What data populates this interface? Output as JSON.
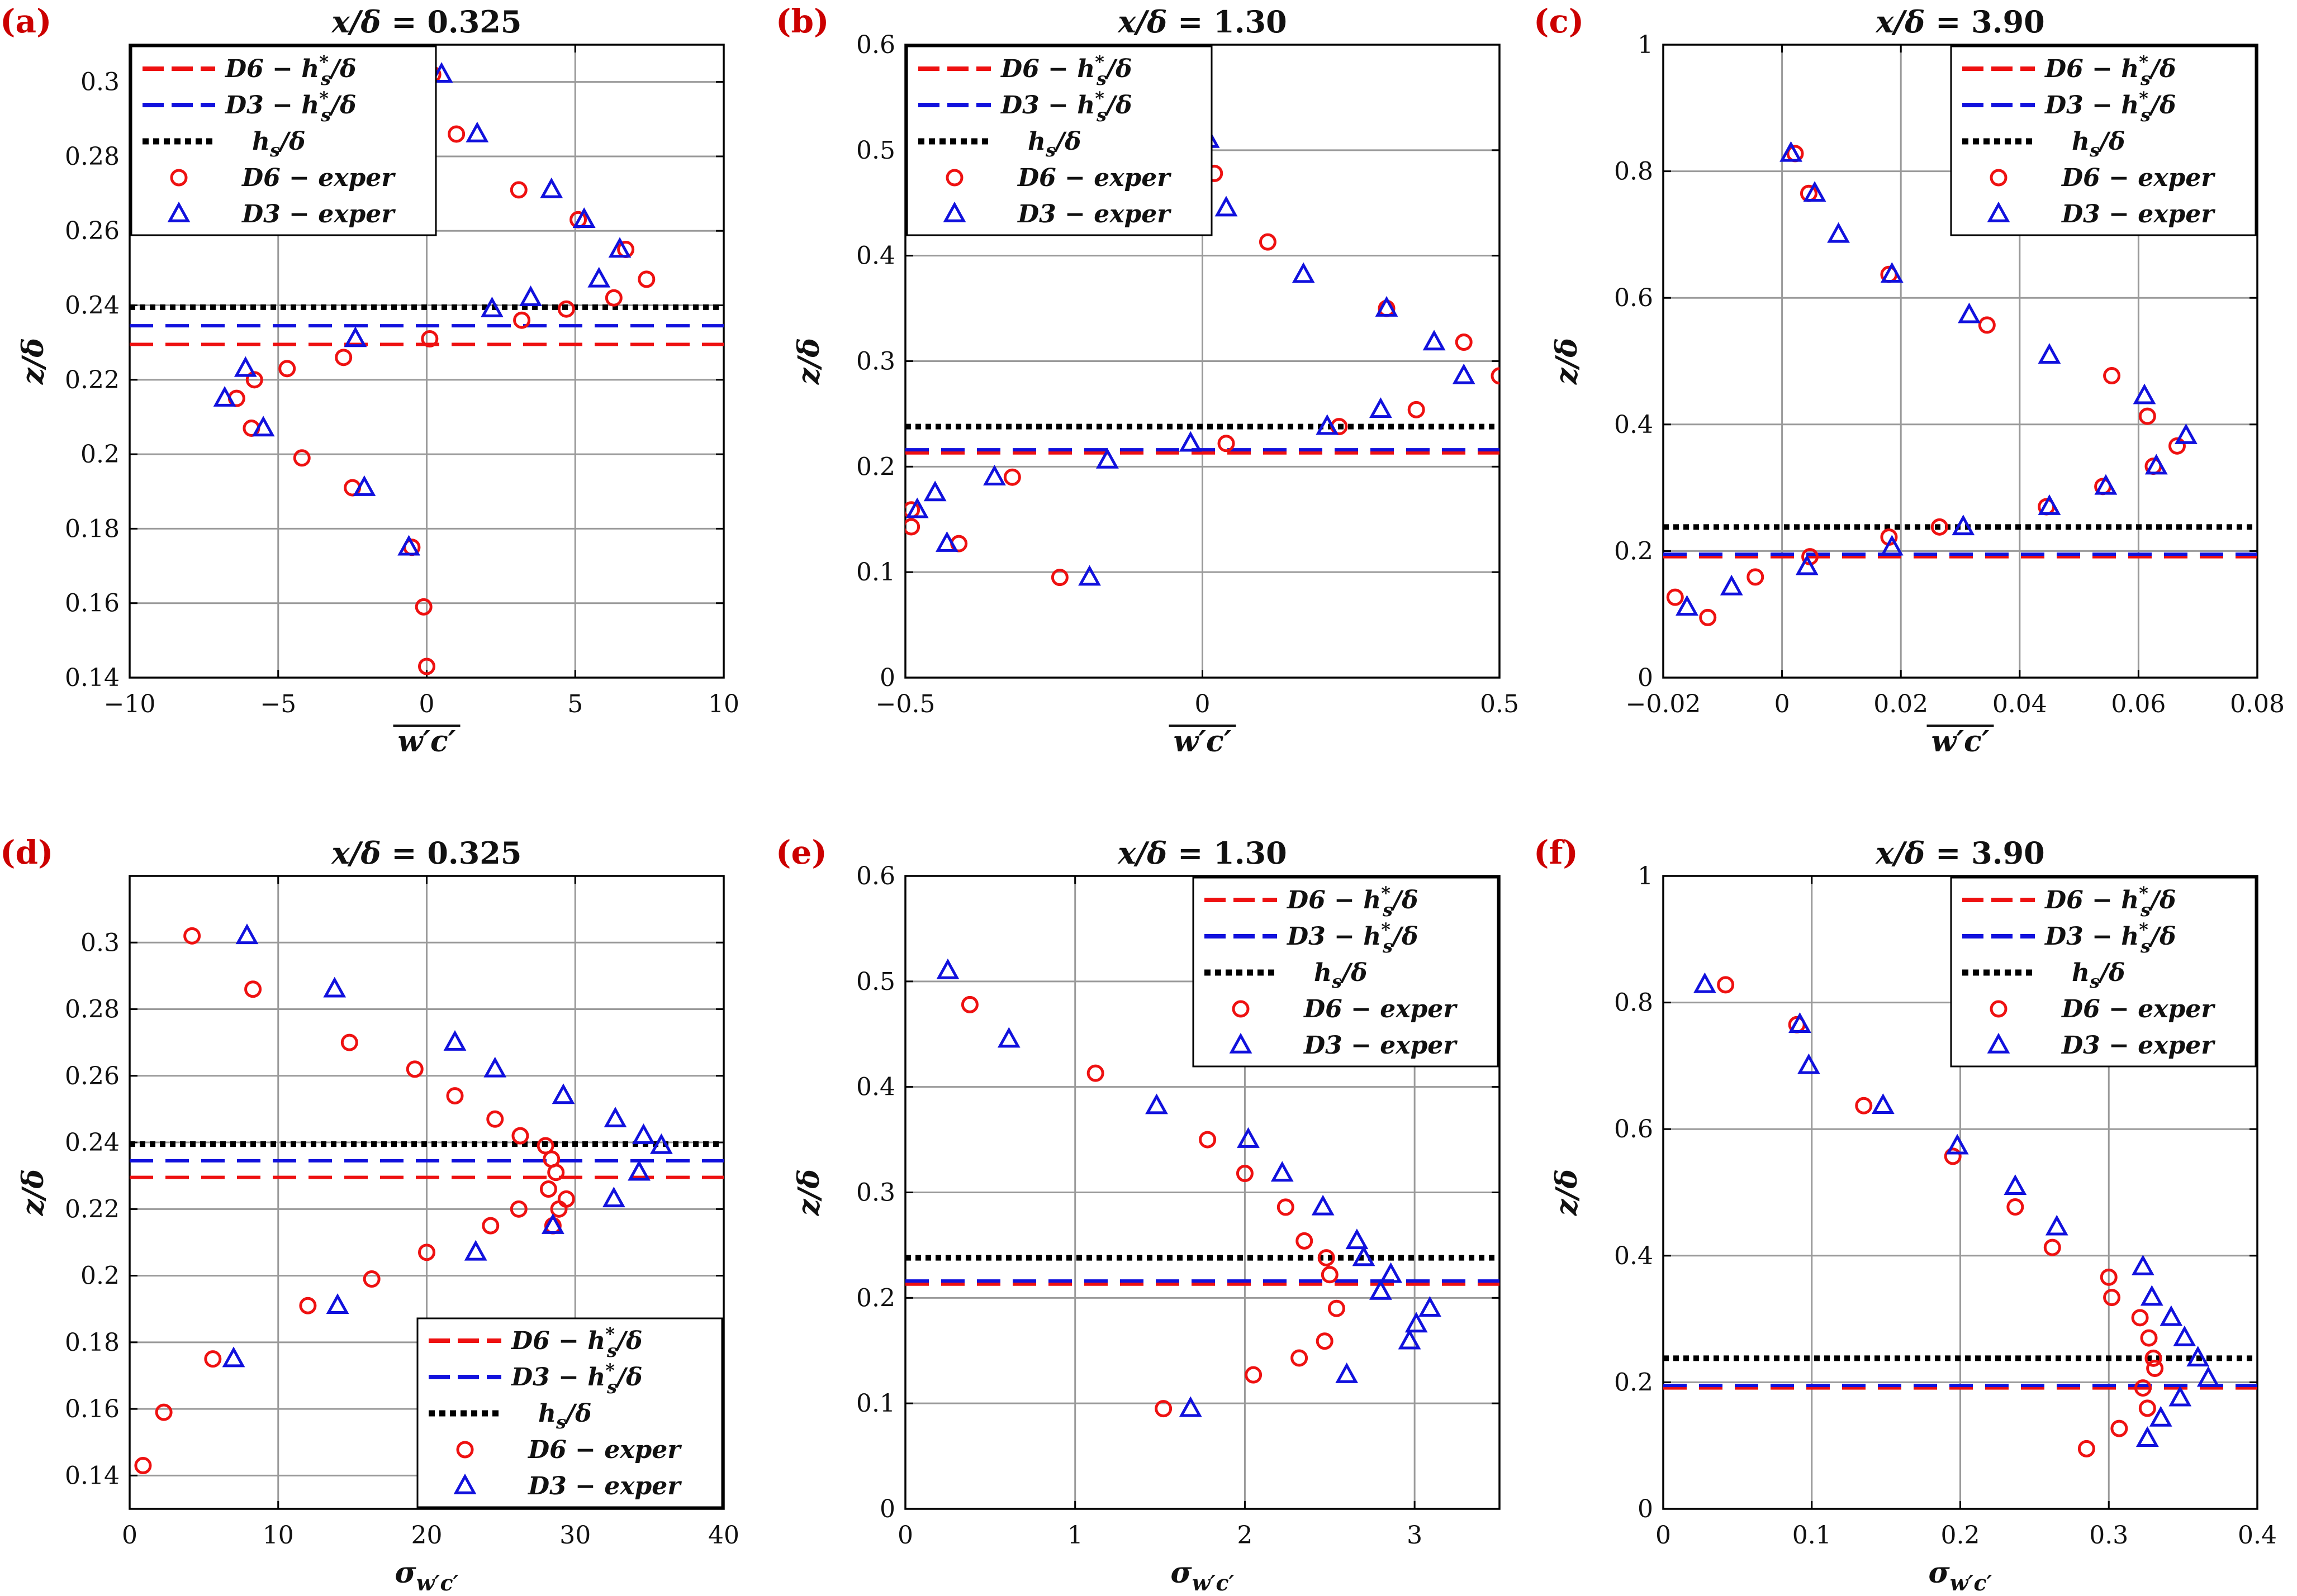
{
  "colors": {
    "D6": "#ee1111",
    "D3": "#1111dd",
    "hs": "#000000",
    "grid": "#9a9a9a"
  },
  "legend_labels": {
    "D6_line": "D6 − h*s/δ",
    "D3_line": "D3 − h*s/δ",
    "hs_line": "hs/δ",
    "D6_exper": "D6 − exper",
    "D3_exper": "D3 − exper"
  },
  "chart_data": [
    {
      "id": "a",
      "panel_label": "(a)",
      "title": "x/δ = 0.325",
      "type": "scatter",
      "xlabel": "w′c′ (overbar)",
      "ylabel": "z/δ",
      "xlim": [
        -10,
        10
      ],
      "ylim": [
        0.14,
        0.31
      ],
      "xticks": [
        -10,
        -5,
        0,
        5,
        10
      ],
      "xtick_labels": [
        "−10",
        "−5",
        "0",
        "5",
        "10"
      ],
      "yticks": [
        0.14,
        0.16,
        0.18,
        0.2,
        0.22,
        0.24,
        0.26,
        0.28,
        0.3
      ],
      "ytick_labels": [
        "0.14",
        "0.16",
        "0.18",
        "0.2",
        "0.22",
        "0.24",
        "0.26",
        "0.28",
        "0.3"
      ],
      "grid": true,
      "legend_position": "top-left",
      "lines": {
        "D6_hs": 0.2295,
        "D3_hs": 0.2345,
        "hs": 0.2395
      },
      "series": [
        {
          "name": "D6 − exper",
          "marker": "circle",
          "x": [
            0.2,
            1.0,
            3.1,
            5.1,
            6.7,
            7.4,
            3.2,
            4.7,
            6.3,
            0.1,
            -2.8,
            -4.7,
            -5.8,
            -6.4,
            -5.9,
            -4.2,
            -2.5,
            -0.5,
            -0.1,
            0.0
          ],
          "y": [
            0.302,
            0.286,
            0.271,
            0.263,
            0.255,
            0.247,
            0.236,
            0.239,
            0.242,
            0.231,
            0.226,
            0.223,
            0.22,
            0.215,
            0.207,
            0.199,
            0.191,
            0.175,
            0.159,
            0.143
          ]
        },
        {
          "name": "D3 − exper",
          "marker": "triangle",
          "x": [
            0.5,
            1.7,
            4.2,
            5.3,
            6.5,
            5.8,
            3.5,
            2.2,
            -2.4,
            -6.1,
            -6.8,
            -5.5,
            -2.1,
            -0.6
          ],
          "y": [
            0.302,
            0.286,
            0.271,
            0.263,
            0.255,
            0.247,
            0.242,
            0.239,
            0.231,
            0.223,
            0.215,
            0.207,
            0.191,
            0.175
          ]
        }
      ]
    },
    {
      "id": "b",
      "panel_label": "(b)",
      "title": "x/δ = 1.30",
      "type": "scatter",
      "xlabel": "w′c′ (overbar)",
      "ylabel": "z/δ",
      "xlim": [
        -0.5,
        0.5
      ],
      "ylim": [
        0,
        0.6
      ],
      "xticks": [
        -0.5,
        0,
        0.5
      ],
      "xtick_labels": [
        "−0.5",
        "0",
        "0.5"
      ],
      "yticks": [
        0,
        0.1,
        0.2,
        0.3,
        0.4,
        0.5,
        0.6
      ],
      "ytick_labels": [
        "0",
        "0.1",
        "0.2",
        "0.3",
        "0.4",
        "0.5",
        "0.6"
      ],
      "grid": true,
      "legend_position": "top-left",
      "lines": {
        "D6_hs": 0.213,
        "D3_hs": 0.216,
        "hs": 0.238
      },
      "series": [
        {
          "name": "D6 − exper",
          "marker": "circle",
          "x": [
            0.02,
            0.11,
            0.31,
            0.44,
            0.5,
            0.36,
            0.23,
            0.04,
            -0.32,
            -0.41,
            -0.24,
            -0.49,
            -0.49
          ],
          "y": [
            0.478,
            0.413,
            0.35,
            0.318,
            0.286,
            0.254,
            0.238,
            0.222,
            0.19,
            0.127,
            0.095,
            0.159,
            0.143
          ]
        },
        {
          "name": "D3 − exper",
          "marker": "triangle",
          "x": [
            0.01,
            0.04,
            0.17,
            0.31,
            0.39,
            0.44,
            0.3,
            0.21,
            -0.02,
            -0.16,
            -0.35,
            -0.45,
            -0.48,
            -0.43,
            -0.19
          ],
          "y": [
            0.51,
            0.445,
            0.382,
            0.35,
            0.318,
            0.286,
            0.254,
            0.238,
            0.222,
            0.206,
            0.19,
            0.175,
            0.159,
            0.127,
            0.095
          ]
        }
      ]
    },
    {
      "id": "c",
      "panel_label": "(c)",
      "title": "x/δ = 3.90",
      "type": "scatter",
      "xlabel": "w′c′ (overbar)",
      "ylabel": "z/δ",
      "xlim": [
        -0.02,
        0.08
      ],
      "ylim": [
        0,
        1
      ],
      "xticks": [
        -0.02,
        0,
        0.02,
        0.04,
        0.06,
        0.08
      ],
      "xtick_labels": [
        "−0.02",
        "0",
        "0.02",
        "0.04",
        "0.06",
        "0.08"
      ],
      "yticks": [
        0,
        0.2,
        0.4,
        0.6,
        0.8,
        1
      ],
      "ytick_labels": [
        "0",
        "0.2",
        "0.4",
        "0.6",
        "0.8",
        "1"
      ],
      "grid": true,
      "legend_position": "top-right",
      "lines": {
        "D6_hs": 0.191,
        "D3_hs": 0.195,
        "hs": 0.238
      },
      "series": [
        {
          "name": "D6 − exper",
          "marker": "circle",
          "x": [
            0.0022,
            0.0045,
            0.018,
            0.0345,
            0.0555,
            0.0615,
            0.0625,
            0.0665,
            0.054,
            0.0445,
            0.0265,
            0.018,
            0.0047,
            -0.0045,
            -0.0125,
            -0.018
          ],
          "y": [
            0.828,
            0.765,
            0.637,
            0.557,
            0.477,
            0.413,
            0.334,
            0.366,
            0.302,
            0.27,
            0.238,
            0.222,
            0.191,
            0.159,
            0.095,
            0.127
          ]
        },
        {
          "name": "D3 − exper",
          "marker": "triangle",
          "x": [
            0.0015,
            0.0055,
            0.0095,
            0.0185,
            0.0315,
            0.045,
            0.061,
            0.068,
            0.063,
            0.0545,
            0.045,
            0.0305,
            0.0185,
            0.0042,
            -0.0085,
            -0.016
          ],
          "y": [
            0.828,
            0.765,
            0.7,
            0.637,
            0.573,
            0.509,
            0.445,
            0.382,
            0.334,
            0.302,
            0.27,
            0.238,
            0.206,
            0.175,
            0.143,
            0.111
          ]
        }
      ]
    },
    {
      "id": "d",
      "panel_label": "(d)",
      "title": "x/δ = 0.325",
      "type": "scatter",
      "xlabel": "σw′c′",
      "ylabel": "z/δ",
      "xlim": [
        0,
        40
      ],
      "ylim": [
        0.13,
        0.32
      ],
      "xticks": [
        0,
        10,
        20,
        30,
        40
      ],
      "xtick_labels": [
        "0",
        "10",
        "20",
        "30",
        "40"
      ],
      "yticks": [
        0.14,
        0.16,
        0.18,
        0.2,
        0.22,
        0.24,
        0.26,
        0.28,
        0.3
      ],
      "ytick_labels": [
        "0.14",
        "0.16",
        "0.18",
        "0.2",
        "0.22",
        "0.24",
        "0.26",
        "0.28",
        "0.3"
      ],
      "grid": true,
      "legend_position": "bottom-right",
      "lines": {
        "D6_hs": 0.2295,
        "D3_hs": 0.2345,
        "hs": 0.2395
      },
      "series": [
        {
          "name": "D6 − exper",
          "marker": "circle",
          "x": [
            4.2,
            8.3,
            14.8,
            19.2,
            21.9,
            24.6,
            26.3,
            28.0,
            28.4,
            28.7,
            28.2,
            29.4,
            28.9,
            28.5,
            26.2,
            24.3,
            20.0,
            16.3,
            12.0,
            5.6,
            2.3,
            0.9
          ],
          "y": [
            0.302,
            0.286,
            0.27,
            0.262,
            0.254,
            0.247,
            0.242,
            0.239,
            0.235,
            0.231,
            0.226,
            0.223,
            0.22,
            0.215,
            0.22,
            0.215,
            0.207,
            0.199,
            0.191,
            0.175,
            0.159,
            0.143
          ]
        },
        {
          "name": "D3 − exper",
          "marker": "triangle",
          "x": [
            7.9,
            13.8,
            21.9,
            24.6,
            29.2,
            32.7,
            34.6,
            35.8,
            34.3,
            32.6,
            28.5,
            23.3,
            14.0,
            7.0
          ],
          "y": [
            0.302,
            0.286,
            0.27,
            0.262,
            0.254,
            0.247,
            0.242,
            0.239,
            0.231,
            0.223,
            0.215,
            0.207,
            0.191,
            0.175
          ]
        }
      ]
    },
    {
      "id": "e",
      "panel_label": "(e)",
      "title": "x/δ = 1.30",
      "type": "scatter",
      "xlabel": "σw′c′",
      "ylabel": "z/δ",
      "xlim": [
        0,
        3.5
      ],
      "ylim": [
        0,
        0.6
      ],
      "xticks": [
        0,
        1,
        2,
        3
      ],
      "xtick_labels": [
        "0",
        "1",
        "2",
        "3"
      ],
      "yticks": [
        0,
        0.1,
        0.2,
        0.3,
        0.4,
        0.5,
        0.6
      ],
      "ytick_labels": [
        "0",
        "0.1",
        "0.2",
        "0.3",
        "0.4",
        "0.5",
        "0.6"
      ],
      "grid": true,
      "legend_position": "top-right",
      "lines": {
        "D6_hs": 0.213,
        "D3_hs": 0.216,
        "hs": 0.238
      },
      "series": [
        {
          "name": "D6 − exper",
          "marker": "circle",
          "x": [
            0.38,
            1.12,
            1.78,
            2.0,
            2.24,
            2.35,
            2.48,
            2.5,
            2.54,
            2.47,
            2.32,
            2.05,
            1.52
          ],
          "y": [
            0.478,
            0.413,
            0.35,
            0.318,
            0.286,
            0.254,
            0.238,
            0.222,
            0.19,
            0.159,
            0.143,
            0.127,
            0.095
          ]
        },
        {
          "name": "D3 − exper",
          "marker": "triangle",
          "x": [
            0.25,
            0.61,
            1.48,
            2.02,
            2.22,
            2.46,
            2.66,
            2.7,
            2.86,
            2.8,
            3.09,
            3.01,
            2.97,
            2.6,
            1.68
          ],
          "y": [
            0.51,
            0.445,
            0.382,
            0.35,
            0.318,
            0.286,
            0.254,
            0.238,
            0.222,
            0.206,
            0.19,
            0.175,
            0.159,
            0.127,
            0.095
          ]
        }
      ]
    },
    {
      "id": "f",
      "panel_label": "(f)",
      "title": "x/δ = 3.90",
      "type": "scatter",
      "xlabel": "σw′c′",
      "ylabel": "z/δ",
      "xlim": [
        0,
        0.4
      ],
      "ylim": [
        0,
        1
      ],
      "xticks": [
        0,
        0.1,
        0.2,
        0.3,
        0.4
      ],
      "xtick_labels": [
        "0",
        "0.1",
        "0.2",
        "0.3",
        "0.4"
      ],
      "yticks": [
        0,
        0.2,
        0.4,
        0.6,
        0.8,
        1
      ],
      "ytick_labels": [
        "0",
        "0.2",
        "0.4",
        "0.6",
        "0.8",
        "1"
      ],
      "grid": true,
      "legend_position": "top-right",
      "lines": {
        "D6_hs": 0.191,
        "D3_hs": 0.195,
        "hs": 0.238
      },
      "series": [
        {
          "name": "D6 − exper",
          "marker": "circle",
          "x": [
            0.042,
            0.09,
            0.135,
            0.195,
            0.237,
            0.262,
            0.3,
            0.302,
            0.321,
            0.327,
            0.33,
            0.331,
            0.323,
            0.326,
            0.307,
            0.285
          ],
          "y": [
            0.828,
            0.765,
            0.637,
            0.557,
            0.477,
            0.413,
            0.366,
            0.334,
            0.302,
            0.27,
            0.238,
            0.222,
            0.191,
            0.159,
            0.127,
            0.095
          ]
        },
        {
          "name": "D3 − exper",
          "marker": "triangle",
          "x": [
            0.028,
            0.092,
            0.098,
            0.148,
            0.198,
            0.237,
            0.265,
            0.323,
            0.329,
            0.342,
            0.351,
            0.36,
            0.367,
            0.348,
            0.335,
            0.326
          ],
          "y": [
            0.828,
            0.765,
            0.7,
            0.637,
            0.573,
            0.509,
            0.445,
            0.382,
            0.334,
            0.302,
            0.27,
            0.238,
            0.206,
            0.175,
            0.143,
            0.111
          ]
        }
      ]
    }
  ]
}
